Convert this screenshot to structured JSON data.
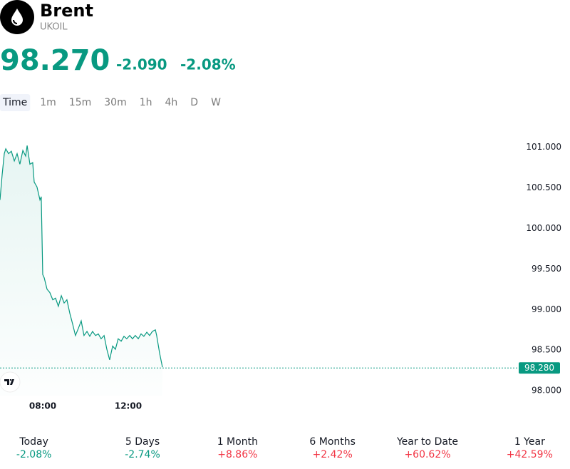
{
  "header": {
    "title": "Brent",
    "symbol": "UKOIL",
    "price": "98.270",
    "change": "-2.090",
    "change_percent": "-2.08%"
  },
  "timeframes": {
    "items": [
      "Time",
      "1m",
      "15m",
      "30m",
      "1h",
      "4h",
      "D",
      "W"
    ],
    "selected": 0
  },
  "chart_data": {
    "type": "line",
    "x": [
      6.0,
      6.1,
      6.2,
      6.27,
      6.4,
      6.53,
      6.67,
      6.8,
      6.93,
      7.07,
      7.2,
      7.27,
      7.4,
      7.53,
      7.6,
      7.73,
      7.87,
      7.93,
      8.0,
      8.07,
      8.2,
      8.33,
      8.47,
      8.6,
      8.73,
      8.87,
      9.0,
      9.13,
      9.27,
      9.4,
      9.53,
      9.67,
      9.8,
      9.93,
      10.07,
      10.2,
      10.33,
      10.47,
      10.6,
      10.73,
      10.87,
      11.0,
      11.13,
      11.27,
      11.4,
      11.53,
      11.67,
      11.8,
      11.93,
      12.07,
      12.2,
      12.33,
      12.47,
      12.6,
      12.73,
      12.87,
      13.0,
      13.13,
      13.27,
      13.33,
      13.47,
      13.6
    ],
    "series": [
      {
        "color": "#089981",
        "values": [
          100.35,
          100.66,
          100.92,
          100.98,
          100.92,
          100.95,
          100.83,
          100.92,
          100.79,
          100.96,
          100.89,
          101.02,
          100.79,
          100.81,
          100.57,
          100.51,
          100.35,
          100.39,
          99.43,
          99.39,
          99.25,
          99.21,
          99.12,
          99.14,
          99.04,
          99.17,
          99.08,
          99.12,
          98.95,
          98.82,
          98.68,
          98.77,
          98.86,
          98.68,
          98.73,
          98.67,
          98.73,
          98.68,
          98.7,
          98.64,
          98.68,
          98.51,
          98.38,
          98.55,
          98.51,
          98.64,
          98.61,
          98.67,
          98.64,
          98.68,
          98.64,
          98.68,
          98.64,
          98.7,
          98.67,
          98.72,
          98.68,
          98.73,
          98.75,
          98.68,
          98.46,
          98.29
        ]
      }
    ],
    "xlim": [
      6.0,
      30.27
    ],
    "xticks": [
      {
        "value": 8,
        "label": "08:00"
      },
      {
        "value": 12,
        "label": "12:00"
      }
    ],
    "ylim": [
      97.94,
      101.32
    ],
    "yticks": [
      {
        "value": 98,
        "label": "98.000"
      },
      {
        "value": 98.5,
        "label": "98.500"
      },
      {
        "value": 99,
        "label": "99.000"
      },
      {
        "value": 99.5,
        "label": "99.500"
      },
      {
        "value": 100,
        "label": "100.000"
      },
      {
        "value": 100.5,
        "label": "100.500"
      },
      {
        "value": 101,
        "label": "101.000"
      }
    ],
    "price_line": {
      "value": 98.28,
      "label": "98.280"
    }
  },
  "performance": [
    {
      "label": "Today",
      "value": "-2.08%"
    },
    {
      "label": "5 Days",
      "value": "-2.74%"
    },
    {
      "label": "1 Month",
      "value": "+8.86%"
    },
    {
      "label": "6 Months",
      "value": "+2.42%"
    },
    {
      "label": "Year to Date",
      "value": "+60.62%"
    },
    {
      "label": "1 Year",
      "value": "+42.59%"
    }
  ]
}
